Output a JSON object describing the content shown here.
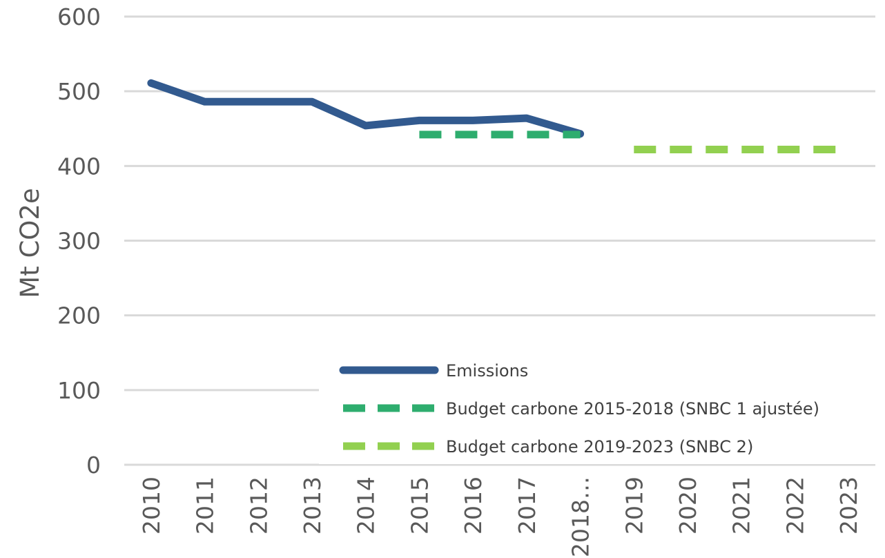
{
  "chart_data": {
    "type": "line",
    "categories": [
      "2010",
      "2011",
      "2012",
      "2013",
      "2014",
      "2015",
      "2016",
      "2017",
      "2018…",
      "2019",
      "2020",
      "2021",
      "2022",
      "2023"
    ],
    "ylabel": "Mt CO2e",
    "ylim": [
      0,
      600
    ],
    "yticks": [
      0,
      100,
      200,
      300,
      400,
      500,
      600
    ],
    "grid": true,
    "legend_position": "bottom-right",
    "series": [
      {
        "name": "Emissions",
        "color": "#325A8F",
        "dash": "solid",
        "values": [
          511,
          486,
          486,
          486,
          454,
          461,
          461,
          464,
          443,
          null,
          null,
          null,
          null,
          null
        ]
      },
      {
        "name": "Budget carbone 2015-2018 (SNBC 1 ajustée)",
        "color": "#2EAD6E",
        "dash": "dashed",
        "values": [
          null,
          null,
          null,
          null,
          null,
          442,
          442,
          442,
          442,
          null,
          null,
          null,
          null,
          null
        ]
      },
      {
        "name": "Budget carbone 2019-2023 (SNBC 2)",
        "color": "#92D050",
        "dash": "dashed",
        "values": [
          null,
          null,
          null,
          null,
          null,
          null,
          null,
          null,
          null,
          422,
          422,
          422,
          422,
          422
        ]
      }
    ]
  }
}
